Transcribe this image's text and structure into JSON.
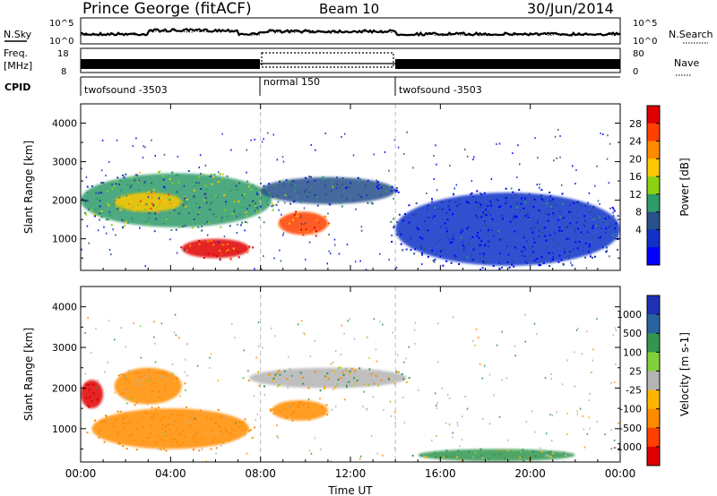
{
  "header": {
    "station": "Prince George (fitACF)",
    "beam": "Beam 10",
    "date": "30/Jun/2014"
  },
  "top_panels": {
    "nsky": {
      "label": "N.Sky",
      "tick_top": "10^5",
      "tick_bottom": "10^0",
      "right_label": "N.Search",
      "right_tick_top": "10^5",
      "right_tick_bottom": "10^0"
    },
    "freq": {
      "label_line1": "Freq.",
      "label_line2": "[MHz]",
      "tick_top": "18",
      "tick_bottom": "8",
      "right_label": "Nave",
      "right_tick_top": "80",
      "right_tick_bottom": "0"
    },
    "cpid": {
      "label": "CPID",
      "segments": [
        {
          "name": "twofsound -3503",
          "start_hour": 0,
          "end_hour": 8
        },
        {
          "name": "normal 150",
          "start_hour": 8,
          "end_hour": 14
        },
        {
          "name": "twofsound -3503",
          "start_hour": 14,
          "end_hour": 24
        }
      ]
    }
  },
  "power_panel": {
    "ylabel": "Slant Range [km]",
    "colorbar_label": "Power [dB]",
    "colorbar_ticks": [
      "28",
      "24",
      "20",
      "16",
      "12",
      "8",
      "4"
    ],
    "colorbar_colors": [
      "#e00000",
      "#ff4000",
      "#ff8c00",
      "#ffc800",
      "#8cd214",
      "#2e9b6a",
      "#28508c",
      "#1030c8",
      "#0000ff"
    ]
  },
  "velocity_panel": {
    "ylabel": "Slant Range [km]",
    "colorbar_label": "Velocity [m s-1]",
    "colorbar_ticks": [
      "1000",
      "500",
      "100",
      "25",
      "-25",
      "-100",
      "-500",
      "-1000"
    ],
    "colorbar_colors": [
      "#1e32b4",
      "#2a64a0",
      "#329650",
      "#7fd23c",
      "#b4b4b4",
      "#ffb400",
      "#ff8c00",
      "#ff4000",
      "#e00000"
    ]
  },
  "xaxis": {
    "label": "Time UT",
    "ticks": [
      "00:00",
      "04:00",
      "08:00",
      "12:00",
      "16:00",
      "20:00",
      "00:00"
    ]
  },
  "chart_data": {
    "type": "heatmap",
    "title": "Prince George (fitACF)  Beam 10  30/Jun/2014",
    "xlabel": "Time UT",
    "ylabel": "Slant Range [km]",
    "x_range_hours": [
      0,
      24
    ],
    "ylim": [
      180,
      4500
    ],
    "y_ticks": [
      1000,
      2000,
      3000,
      4000
    ],
    "panels": [
      {
        "name": "Power",
        "unit": "dB",
        "color_range": [
          0,
          30
        ],
        "regions": [
          {
            "t_start": 0.0,
            "t_end": 8.5,
            "range_start": 1300,
            "range_end": 2700,
            "value": 14
          },
          {
            "t_start": 1.5,
            "t_end": 4.5,
            "range_start": 1700,
            "range_end": 2200,
            "value": 20
          },
          {
            "t_start": 4.5,
            "t_end": 7.5,
            "range_start": 500,
            "range_end": 1000,
            "value": 28
          },
          {
            "t_start": 8.8,
            "t_end": 11.0,
            "range_start": 1100,
            "range_end": 1700,
            "value": 26
          },
          {
            "t_start": 8.0,
            "t_end": 14.0,
            "range_start": 1900,
            "range_end": 2600,
            "value": 10
          },
          {
            "t_start": 14.0,
            "t_end": 24.0,
            "range_start": 300,
            "range_end": 2200,
            "value": 6
          }
        ]
      },
      {
        "name": "Velocity",
        "unit": "m/s",
        "color_range": [
          -1000,
          1000
        ],
        "regions": [
          {
            "t_start": 0.0,
            "t_end": 1.0,
            "range_start": 1500,
            "range_end": 2200,
            "value": -1000
          },
          {
            "t_start": 0.5,
            "t_end": 7.5,
            "range_start": 500,
            "range_end": 1500,
            "value": -300
          },
          {
            "t_start": 1.5,
            "t_end": 4.5,
            "range_start": 1600,
            "range_end": 2500,
            "value": -150
          },
          {
            "t_start": 8.5,
            "t_end": 11.0,
            "range_start": 1200,
            "range_end": 1700,
            "value": -300
          },
          {
            "t_start": 7.5,
            "t_end": 14.5,
            "range_start": 2000,
            "range_end": 2500,
            "value": 0
          },
          {
            "t_start": 15.0,
            "t_end": 22.0,
            "range_start": 200,
            "range_end": 500,
            "value": 80
          }
        ]
      }
    ]
  }
}
